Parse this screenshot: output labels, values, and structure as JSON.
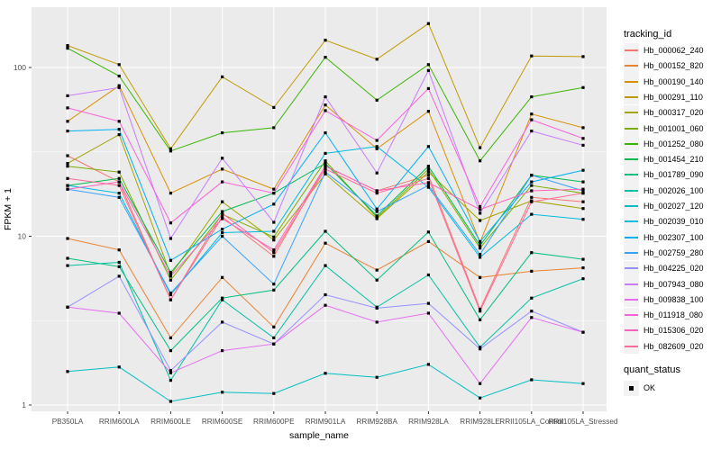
{
  "figure": {
    "x_axis_title": "sample_name",
    "y_axis_title": "FPKM + 1"
  },
  "legend": {
    "tracking_title": "tracking_id",
    "quant_title": "quant_status",
    "quant_value": "OK"
  },
  "chart_data": {
    "type": "line",
    "title": "",
    "xlabel": "sample_name",
    "ylabel": "FPKM + 1",
    "y_scale": "log10",
    "ylim": [
      1,
      222
    ],
    "y_major_ticks": [
      1,
      10,
      100
    ],
    "y_tick_labels": [
      "1",
      "10",
      "100"
    ],
    "y_minor_breaks": [
      3.162,
      31.62
    ],
    "grid": "white on grey panel",
    "panel_bg": "#EBEBEB",
    "grid_color": "#FFFFFF",
    "axis_text_color": "#4D4D4D",
    "marker": "black square (quant_status OK)",
    "legend_position": "right",
    "categories": [
      "PB350LA",
      "RRIM600LA",
      "RRIM600LE",
      "RRIM600SE",
      "RRIM600PE",
      "RRIM901LA",
      "RRIM928BA",
      "RRIM928LA",
      "RRIM928LE",
      "RRII105LA_Control",
      "RRII105LA_Stressed"
    ],
    "series": [
      {
        "name": "Hb_000062_240",
        "color": "#F8766D",
        "values": [
          30,
          21,
          4.2,
          13,
          7.6,
          26,
          18.6,
          23,
          3.7,
          17,
          16
        ]
      },
      {
        "name": "Hb_000152_820",
        "color": "#EA8331",
        "values": [
          9.7,
          8.3,
          2.5,
          5.7,
          2.9,
          9.1,
          6.3,
          9.3,
          5.7,
          6.2,
          6.5
        ]
      },
      {
        "name": "Hb_000190_140",
        "color": "#D89000",
        "values": [
          48,
          78,
          18,
          25,
          19,
          60,
          33,
          55,
          9.2,
          53,
          44
        ]
      },
      {
        "name": "Hb_000291_110",
        "color": "#C09B00",
        "values": [
          135,
          104,
          33,
          88,
          58,
          145,
          112,
          182,
          33.5,
          117,
          116
        ]
      },
      {
        "name": "Hb_000317_020",
        "color": "#A3A500",
        "values": [
          27,
          40,
          5.9,
          16,
          9.5,
          23.4,
          12.7,
          24,
          12.4,
          16.2,
          14.6
        ]
      },
      {
        "name": "Hb_001001_060",
        "color": "#7CAE00",
        "values": [
          26,
          24,
          5.5,
          13.5,
          9.9,
          28,
          12.9,
          25,
          8.5,
          20,
          18
        ]
      },
      {
        "name": "Hb_001252_080",
        "color": "#39B600",
        "values": [
          130,
          89,
          32,
          41,
          44,
          115,
          64,
          104,
          28,
          67,
          76
        ]
      },
      {
        "name": "Hb_001454_210",
        "color": "#00BB4E",
        "values": [
          20,
          22,
          6.1,
          14,
          18,
          27,
          13.2,
          26,
          8.8,
          23,
          21
        ]
      },
      {
        "name": "Hb_001789_090",
        "color": "#00BF7D",
        "values": [
          7.4,
          6.6,
          2.1,
          4.3,
          4.8,
          10.7,
          5.5,
          10.6,
          3.2,
          8,
          7.3
        ]
      },
      {
        "name": "Hb_002026_100",
        "color": "#00C1A3",
        "values": [
          6.7,
          7,
          1.4,
          4.2,
          2.5,
          6.7,
          3.8,
          5.9,
          2.2,
          4.3,
          5.6
        ]
      },
      {
        "name": "Hb_002027_120",
        "color": "#00BFC4",
        "values": [
          1.58,
          1.68,
          1.05,
          1.19,
          1.17,
          1.54,
          1.46,
          1.74,
          1.1,
          1.41,
          1.34
        ]
      },
      {
        "name": "Hb_002039_010",
        "color": "#00BAE0",
        "values": [
          20,
          18,
          4.5,
          10.5,
          10.7,
          31,
          34,
          19.5,
          7.5,
          13.5,
          12.6
        ]
      },
      {
        "name": "Hb_002307_100",
        "color": "#00B0F6",
        "values": [
          42,
          43,
          7.2,
          11,
          15.5,
          41,
          14.5,
          34,
          9.3,
          21,
          24.6
        ]
      },
      {
        "name": "Hb_002759_280",
        "color": "#35A2FF",
        "values": [
          19,
          17,
          4.6,
          10,
          5.2,
          24,
          14,
          20,
          7.8,
          23,
          18.6
        ]
      },
      {
        "name": "Hb_004225_020",
        "color": "#9590FF",
        "values": [
          3.8,
          5.8,
          1.6,
          3.1,
          2.3,
          4.5,
          3.75,
          4,
          2.15,
          3.6,
          2.7
        ]
      },
      {
        "name": "Hb_007943_080",
        "color": "#C77CFF",
        "values": [
          68,
          76,
          9.7,
          29,
          12.1,
          67,
          23.7,
          96,
          13.7,
          42,
          34.6
        ]
      },
      {
        "name": "Hb_009838_100",
        "color": "#E76BF3",
        "values": [
          3.8,
          3.5,
          1.55,
          2.1,
          2.3,
          3.9,
          3.1,
          3.5,
          1.34,
          3.3,
          2.7
        ]
      },
      {
        "name": "Hb_011918_080",
        "color": "#FA62DB",
        "values": [
          57.6,
          48,
          12,
          21,
          18,
          55.5,
          37,
          75,
          15,
          49,
          38
        ]
      },
      {
        "name": "Hb_015306_020",
        "color": "#FF62BC",
        "values": [
          19,
          21,
          5.8,
          12.7,
          8.3,
          26,
          18.6,
          20.8,
          14.4,
          18.6,
          19
        ]
      },
      {
        "name": "Hb_082609_020",
        "color": "#FF6A98",
        "values": [
          22,
          20,
          4.2,
          13.7,
          8,
          25,
          18,
          22,
          3.6,
          16,
          18
        ]
      }
    ]
  }
}
